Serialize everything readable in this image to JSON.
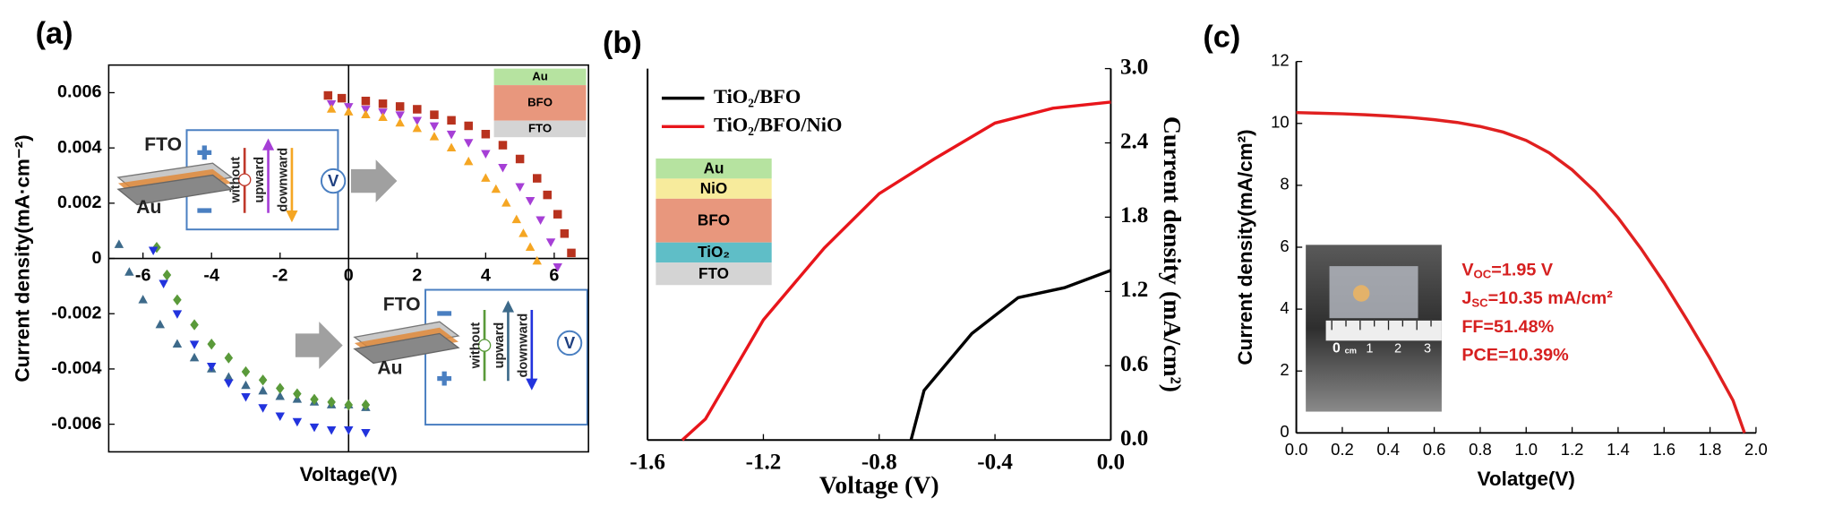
{
  "chart_data": [
    {
      "type": "scatter",
      "panel_label": "(a)",
      "x_label": "Voltage(V)",
      "y_label": "Current density(mA·cm⁻²)",
      "xlim": [
        -7,
        7
      ],
      "ylim": [
        -0.007,
        0.007
      ],
      "xticks": [
        -6,
        -4,
        -2,
        0,
        2,
        4,
        6
      ],
      "yticks": [
        -0.006,
        -0.004,
        -0.002,
        0,
        0.002,
        0.004,
        0.006
      ],
      "frame": "box",
      "axes_at_zero": true,
      "y_axis_side": "left",
      "series": [
        {
          "color": "#b8321e",
          "marker": "square",
          "x": [
            -0.6,
            -0.2,
            0.5,
            1,
            1.5,
            2,
            2.5,
            3,
            3.5,
            4,
            4.5,
            5,
            5.5,
            5.8,
            6.1,
            6.3,
            6.5
          ],
          "values": [
            0.0059,
            0.0058,
            0.0057,
            0.0056,
            0.0055,
            0.0054,
            0.0052,
            0.005,
            0.0048,
            0.0045,
            0.0041,
            0.0036,
            0.0029,
            0.0023,
            0.0016,
            0.0009,
            0.0002
          ]
        },
        {
          "color": "#a63fd6",
          "marker": "triangle-down",
          "x": [
            -0.5,
            0,
            0.5,
            1,
            1.5,
            2,
            2.5,
            3,
            3.5,
            4,
            4.5,
            5,
            5.3,
            5.6,
            5.9,
            6.1
          ],
          "values": [
            0.0056,
            0.0055,
            0.0054,
            0.0053,
            0.0052,
            0.005,
            0.0048,
            0.0045,
            0.0042,
            0.0038,
            0.0033,
            0.0026,
            0.0021,
            0.0014,
            0.0006,
            -0.0003
          ]
        },
        {
          "color": "#f5a623",
          "marker": "triangle",
          "x": [
            -0.5,
            0,
            0.5,
            1,
            1.5,
            2,
            2.5,
            3,
            3.5,
            4,
            4.3,
            4.6,
            4.9,
            5.1,
            5.3,
            5.5
          ],
          "values": [
            0.0054,
            0.0053,
            0.0052,
            0.0051,
            0.0049,
            0.0047,
            0.0044,
            0.004,
            0.0035,
            0.0029,
            0.0025,
            0.002,
            0.0014,
            0.0009,
            0.0004,
            -0.0001
          ]
        },
        {
          "color": "#3d6a8a",
          "marker": "triangle",
          "x": [
            -6.7,
            -6.4,
            -6,
            -5.5,
            -5,
            -4.5,
            -4,
            -3.5,
            -3,
            -2.5,
            -2,
            -1.5,
            -1,
            -0.5,
            0,
            0.5
          ],
          "values": [
            0.0005,
            -0.0005,
            -0.0015,
            -0.0024,
            -0.0031,
            -0.0036,
            -0.004,
            -0.0043,
            -0.0046,
            -0.0048,
            -0.005,
            -0.0051,
            -0.0052,
            -0.0053,
            -0.0053,
            -0.0054
          ]
        },
        {
          "color": "#5a9a3a",
          "marker": "diamond",
          "x": [
            -5.6,
            -5.3,
            -5,
            -4.5,
            -4,
            -3.5,
            -3,
            -2.5,
            -2,
            -1.5,
            -1,
            -0.5,
            0,
            0.5
          ],
          "values": [
            0.0004,
            -0.0006,
            -0.0015,
            -0.0024,
            -0.0031,
            -0.0036,
            -0.0041,
            -0.0044,
            -0.0047,
            -0.0049,
            -0.0051,
            -0.0052,
            -0.0053,
            -0.0053
          ]
        },
        {
          "color": "#2233dd",
          "marker": "triangle-down",
          "x": [
            -5.7,
            -5.4,
            -5,
            -4.5,
            -4,
            -3.5,
            -3,
            -2.5,
            -2,
            -1.5,
            -1,
            -0.5,
            0,
            0.5
          ],
          "values": [
            0.0003,
            -0.0009,
            -0.002,
            -0.0031,
            -0.0039,
            -0.0045,
            -0.005,
            -0.0054,
            -0.0057,
            -0.0059,
            -0.0061,
            -0.0062,
            -0.0062,
            -0.0063
          ]
        }
      ],
      "annotations": [
        "FTO",
        "Au",
        "without",
        "upward",
        "downward",
        "V",
        "FTO",
        "Au",
        "without",
        "upward",
        "downward",
        "V",
        "Au",
        "BFO",
        "FTO"
      ]
    },
    {
      "type": "line",
      "panel_label": "(b)",
      "x_label": "Voltage (V)",
      "y_label": "Current density (mA/cm²)",
      "xlim": [
        -1.6,
        0
      ],
      "ylim": [
        0,
        3
      ],
      "xticks": [
        -1.6,
        -1.2,
        -0.8,
        -0.4,
        {
          "value": 0,
          "label": "0.0"
        }
      ],
      "yticks": [
        {
          "value": 0,
          "label": "0.0"
        },
        0.6,
        1.2,
        1.8,
        2.4,
        {
          "value": 3,
          "label": "3.0"
        }
      ],
      "frame": "open",
      "axes_at_zero": false,
      "y_axis_side": "right",
      "legend": "upper left",
      "series": [
        {
          "name": "TiO₂/BFO",
          "color": "#000000",
          "x": [
            -0.69,
            -0.645,
            -0.48,
            -0.32,
            -0.16,
            0
          ],
          "values": [
            0,
            0.4,
            0.86,
            1.15,
            1.23,
            1.37
          ]
        },
        {
          "name": "TiO₂/BFO/NiO",
          "color": "#e8151b",
          "x": [
            -1.48,
            -1.4,
            -1.2,
            -0.99,
            -0.8,
            -0.61,
            -0.4,
            -0.2,
            0
          ],
          "values": [
            0,
            0.17,
            0.97,
            1.55,
            1.99,
            2.27,
            2.56,
            2.68,
            2.73
          ]
        }
      ],
      "annotations": [
        "Au",
        "NiO",
        "BFO",
        "TiO₂",
        "FTO"
      ]
    },
    {
      "type": "line",
      "panel_label": "(c)",
      "x_label": "Volatge(V)",
      "y_label": "Current density(mA/cm²)",
      "xlim": [
        0,
        2
      ],
      "ylim": [
        0,
        12
      ],
      "xticks": [
        {
          "value": 0,
          "label": "0.0"
        },
        0.2,
        0.4,
        0.6,
        0.8,
        {
          "value": 1,
          "label": "1.0"
        },
        1.2,
        1.4,
        1.6,
        1.8,
        {
          "value": 2,
          "label": "2.0"
        }
      ],
      "yticks": [
        0,
        2,
        4,
        6,
        8,
        10,
        12
      ],
      "frame": "open",
      "axes_at_zero": false,
      "y_axis_side": "left",
      "series": [
        {
          "color": "#e02020",
          "x": [
            0,
            0.1,
            0.2,
            0.3,
            0.4,
            0.5,
            0.6,
            0.7,
            0.8,
            0.9,
            1,
            1.1,
            1.2,
            1.3,
            1.4,
            1.5,
            1.6,
            1.7,
            1.8,
            1.9,
            1.95
          ],
          "values": [
            10.35,
            10.33,
            10.31,
            10.28,
            10.24,
            10.19,
            10.12,
            10.03,
            9.9,
            9.72,
            9.45,
            9.05,
            8.5,
            7.8,
            6.95,
            5.95,
            4.85,
            3.65,
            2.4,
            1.05,
            0
          ]
        }
      ],
      "annotations": [
        "0",
        "cm",
        "1",
        "2",
        "3"
      ],
      "parameters": [
        {
          "text": "V",
          "sub": "OC",
          "rest": "=1.95 V"
        },
        {
          "text": "J",
          "sub": "SC",
          "rest": "=10.35 mA/cm²"
        },
        {
          "text": "FF=51.48%"
        },
        {
          "text": "PCE=10.39%"
        }
      ]
    }
  ]
}
